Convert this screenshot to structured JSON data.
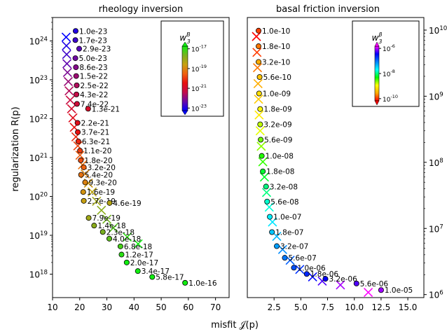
{
  "figure": {
    "xlabel": "misfit 𝒥(p)",
    "ylabel": "regularization R(p)"
  },
  "chart_data": [
    {
      "type": "scatter",
      "title": "rheology inversion",
      "xlim": [
        10,
        75
      ],
      "ylim": [
        2.5e+17,
        4e+24
      ],
      "log_y": true,
      "x_ticks": [
        "10",
        "20",
        "30",
        "40",
        "50",
        "60",
        "70"
      ],
      "y_ticks": [
        "10^18",
        "10^19",
        "10^20",
        "10^21",
        "10^22",
        "10^23",
        "10^24"
      ],
      "y_tick_values": [
        1e+18,
        1e+19,
        1e+20,
        1e+21,
        1e+22,
        1e+23,
        1e+24
      ],
      "colorbar": {
        "label": "w3B",
        "label_main": "w",
        "label_sub": "3",
        "label_sup": "B",
        "ticks": [
          "10^-17",
          "10^-19",
          "10^-21",
          "10^-23"
        ],
        "range_log": [
          -23.3,
          -16.7
        ],
        "colormap": [
          "#0000ff",
          "#6a0aa8",
          "#c40c4a",
          "#e81010",
          "#f06010",
          "#c8a010",
          "#7ab020",
          "#10ee10"
        ]
      },
      "highlight_color": "#0000ff",
      "curve_x": [
        15.0,
        15.1,
        15.2,
        15.3,
        15.5,
        15.8,
        16.1,
        16.5,
        17.0,
        17.5,
        18.0,
        18.6,
        19.3,
        20.1,
        21.0,
        22.0,
        23.2,
        24.6,
        26.2,
        28.0,
        30.0,
        32.4,
        37.5,
        41.5
      ],
      "curve_y": [
        1.25e+24,
        7.5e+23,
        4.5e+23,
        2.6e+23,
        1.55e+23,
        9e+22,
        5.2e+22,
        3e+22,
        1.8e+22,
        1.05e+22,
        6e+21,
        3.4e+21,
        2e+21,
        1.15e+21,
        6.5e+20,
        3.8e+20,
        2.2e+20,
        1.3e+20,
        7.5e+19,
        4.4e+19,
        2.6e+19,
        1.55e+19,
        9e+18,
        6e+18
      ],
      "points": [
        {
          "x": 18.5,
          "y": 1.8e+24,
          "label": "1.0e-23",
          "w": 1e-23,
          "highlight": false
        },
        {
          "x": 18.4,
          "y": 1.05e+24,
          "label": "1.7e-23",
          "w": 1.7e-23,
          "highlight": false
        },
        {
          "x": 19.8,
          "y": 6.3e+23,
          "label": "2.9e-23",
          "w": 2.9e-23,
          "highlight": false
        },
        {
          "x": 18.4,
          "y": 3.6e+23,
          "label": "5.0e-23",
          "w": 5e-23,
          "highlight": false
        },
        {
          "x": 18.6,
          "y": 2.1e+23,
          "label": "8.6e-23",
          "w": 8.6e-23,
          "highlight": false
        },
        {
          "x": 18.7,
          "y": 1.25e+23,
          "label": "1.5e-22",
          "w": 1.5e-22,
          "highlight": false
        },
        {
          "x": 18.9,
          "y": 7.2e+22,
          "label": "2.5e-22",
          "w": 2.5e-22,
          "highlight": false
        },
        {
          "x": 18.8,
          "y": 4.2e+22,
          "label": "4.3e-22",
          "w": 4.3e-22,
          "highlight": false
        },
        {
          "x": 19.0,
          "y": 2.4e+22,
          "label": "7.4e-22",
          "w": 7.4e-22,
          "highlight": false
        },
        {
          "x": 23.1,
          "y": 1.8e+22,
          "label": "1.3e-21",
          "w": 1.3e-21,
          "highlight": false
        },
        {
          "x": 19.2,
          "y": 7.8e+21,
          "label": "2.2e-21",
          "w": 2.2e-21,
          "highlight": false
        },
        {
          "x": 19.3,
          "y": 4.5e+21,
          "label": "3.7e-21",
          "w": 3.7e-21,
          "highlight": false
        },
        {
          "x": 19.5,
          "y": 2.6e+21,
          "label": "6.3e-21",
          "w": 6.3e-21,
          "highlight": false
        },
        {
          "x": 20.1,
          "y": 1.5e+21,
          "label": "1.1e-20",
          "w": 1.1e-20,
          "highlight": false
        },
        {
          "x": 20.4,
          "y": 8.5e+20,
          "label": "1.8e-20",
          "w": 1.8e-20,
          "highlight": false
        },
        {
          "x": 21.5,
          "y": 5.6e+20,
          "label": "3.2e-20",
          "w": 3.2e-20,
          "highlight": false
        },
        {
          "x": 20.5,
          "y": 3.6e+20,
          "label": "5.4e-20",
          "w": 5.4e-20,
          "highlight": false
        },
        {
          "x": 22.0,
          "y": 2.3e+20,
          "label": "9.3e-20",
          "w": 9.3e-20,
          "highlight": false
        },
        {
          "x": 21.3,
          "y": 1.3e+20,
          "label": "1.6e-19",
          "w": 1.6e-19,
          "highlight": false
        },
        {
          "x": 21.5,
          "y": 7.7e+19,
          "label": "2.7e-19",
          "w": 2.7e-19,
          "highlight": false
        },
        {
          "x": 31.0,
          "y": 6.8e+19,
          "label": "4.6e-19",
          "w": 4.6e-19,
          "highlight": false
        },
        {
          "x": 23.3,
          "y": 2.8e+19,
          "label": "7.9e-19",
          "w": 7.9e-19,
          "highlight": true
        },
        {
          "x": 25.3,
          "y": 1.78e+19,
          "label": "1.4e-18",
          "w": 1.4e-18,
          "highlight": false
        },
        {
          "x": 28.5,
          "y": 1.22e+19,
          "label": "2.3e-18",
          "w": 2.3e-18,
          "highlight": false
        },
        {
          "x": 30.9,
          "y": 8.2e+18,
          "label": "4.0e-18",
          "w": 4e-18,
          "highlight": false
        },
        {
          "x": 35.0,
          "y": 5.2e+18,
          "label": "6.8e-18",
          "w": 6.8e-18,
          "highlight": false
        },
        {
          "x": 35.4,
          "y": 3.2e+18,
          "label": "1.2e-17",
          "w": 1.2e-17,
          "highlight": false
        },
        {
          "x": 37.3,
          "y": 2e+18,
          "label": "2.0e-17",
          "w": 2e-17,
          "highlight": false
        },
        {
          "x": 41.4,
          "y": 1.2e+18,
          "label": "3.4e-17",
          "w": 3.4e-17,
          "highlight": false
        },
        {
          "x": 46.7,
          "y": 8.5e+17,
          "label": "5.8e-17",
          "w": 5.8e-17,
          "highlight": false
        },
        {
          "x": 58.8,
          "y": 6e+17,
          "label": "1.0e-16",
          "w": 1e-16,
          "highlight": false
        }
      ]
    },
    {
      "type": "scatter",
      "title": "basal friction inversion",
      "xlim": [
        0,
        16.5
      ],
      "ylim": [
        900000.0,
        15500000000.0
      ],
      "log_y": true,
      "y_axis_side": "right",
      "x_ticks": [
        "2.5",
        "5.0",
        "7.5",
        "10.0",
        "12.5",
        "15.0"
      ],
      "x_tick_values": [
        2.5,
        5.0,
        7.5,
        10.0,
        12.5,
        15.0
      ],
      "y_ticks": [
        "10^6",
        "10^7",
        "10^8",
        "10^9",
        "10^10"
      ],
      "y_tick_values": [
        1000000.0,
        10000000.0,
        100000000.0,
        1000000000.0,
        10000000000.0
      ],
      "colorbar": {
        "label": "w3β",
        "label_main": "w",
        "label_sub": "3",
        "label_sup": "β",
        "ticks": [
          "10^-6",
          "10^-8",
          "10^-10"
        ],
        "range_log": [
          -10.3,
          -4.7
        ],
        "colormap": [
          "#ff0000",
          "#ffaa00",
          "#ffff00",
          "#00ff00",
          "#00ffff",
          "#0080ff",
          "#0000ff",
          "#ff00ff"
        ]
      },
      "highlight_color": "#0000ff",
      "curve_x": [
        0.85,
        0.9,
        0.95,
        1.0,
        1.05,
        1.1,
        1.2,
        1.3,
        1.45,
        1.6,
        1.8,
        2.05,
        2.35,
        2.75,
        3.3,
        4.0,
        4.9,
        6.1,
        7.0,
        8.7,
        11.3
      ],
      "curve_y": [
        8000000000.0,
        4600000000.0,
        2700000000.0,
        1550000000.0,
        900000000.0,
        520000000.0,
        300000000.0,
        175000000.0,
        102000000.0,
        60000000.0,
        35000000.0,
        21000000.0,
        12500000.0,
        7600000.0,
        4800000.0,
        3300000.0,
        2400000.0,
        1850000.0,
        1600000.0,
        1400000.0,
        1080000.0
      ],
      "points": [
        {
          "x": 1.05,
          "y": 9800000000.0,
          "label": "1.0e-10",
          "w": 1e-10,
          "highlight": false
        },
        {
          "x": 1.05,
          "y": 5700000000.0,
          "label": "1.8e-10",
          "w": 1.8e-10,
          "highlight": false
        },
        {
          "x": 1.05,
          "y": 3300000000.0,
          "label": "3.2e-10",
          "w": 3.2e-10,
          "highlight": false
        },
        {
          "x": 1.15,
          "y": 1950000000.0,
          "label": "5.6e-10",
          "w": 5.6e-10,
          "highlight": false
        },
        {
          "x": 1.1,
          "y": 1100000000.0,
          "label": "1.0e-09",
          "w": 1e-09,
          "highlight": false
        },
        {
          "x": 1.2,
          "y": 640000000.0,
          "label": "1.8e-09",
          "w": 1.8e-09,
          "highlight": false
        },
        {
          "x": 1.2,
          "y": 375000000.0,
          "label": "3.2e-09",
          "w": 3.2e-09,
          "highlight": false
        },
        {
          "x": 1.25,
          "y": 220000000.0,
          "label": "5.6e-09",
          "w": 5.6e-09,
          "highlight": false
        },
        {
          "x": 1.35,
          "y": 125000000.0,
          "label": "1.0e-08",
          "w": 1e-08,
          "highlight": false
        },
        {
          "x": 1.45,
          "y": 73000000.0,
          "label": "1.8e-08",
          "w": 1.8e-08,
          "highlight": false
        },
        {
          "x": 1.75,
          "y": 43000000.0,
          "label": "3.2e-08",
          "w": 3.2e-08,
          "highlight": false
        },
        {
          "x": 1.85,
          "y": 25500000.0,
          "label": "5.6e-08",
          "w": 5.6e-08,
          "highlight": false
        },
        {
          "x": 2.1,
          "y": 15000000.0,
          "label": "1.0e-07",
          "w": 1e-07,
          "highlight": false
        },
        {
          "x": 2.3,
          "y": 8800000.0,
          "label": "1.8e-07",
          "w": 1.8e-07,
          "highlight": false
        },
        {
          "x": 2.75,
          "y": 5400000.0,
          "label": "3.2e-07",
          "w": 3.2e-07,
          "highlight": true
        },
        {
          "x": 3.5,
          "y": 3600000.0,
          "label": "5.6e-07",
          "w": 5.6e-07,
          "highlight": false
        },
        {
          "x": 4.35,
          "y": 2550000.0,
          "label": "1.0e-06",
          "w": 1e-06,
          "highlight": false
        },
        {
          "x": 5.55,
          "y": 2050000.0,
          "label": "1.8e-06",
          "w": 1.8e-06,
          "highlight": false
        },
        {
          "x": 7.3,
          "y": 1730000.0,
          "label": "3.2e-06",
          "w": 3.2e-06,
          "highlight": false
        },
        {
          "x": 10.2,
          "y": 1470000.0,
          "label": "5.6e-06",
          "w": 5.6e-06,
          "highlight": false
        },
        {
          "x": 12.5,
          "y": 1170000.0,
          "label": "1.0e-05",
          "w": 1e-05,
          "highlight": false
        }
      ]
    }
  ]
}
